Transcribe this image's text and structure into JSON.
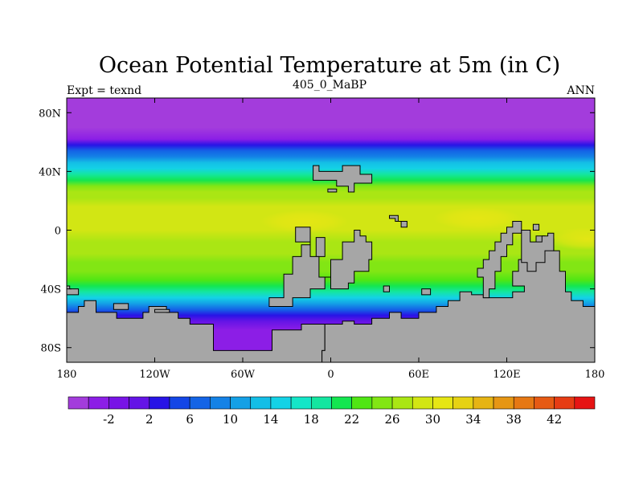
{
  "chart_data": {
    "type": "heatmap",
    "title": "Ocean Potential Temperature at 5m (in C)",
    "left_label": "Expt = texnd",
    "center_label": "405_0_MaBP",
    "right_label": "ANN",
    "x_ticks": [
      "180",
      "120W",
      "60W",
      "0",
      "60E",
      "120E",
      "180"
    ],
    "x_tick_values": [
      -180,
      -120,
      -60,
      0,
      60,
      120,
      180
    ],
    "y_ticks": [
      "80N",
      "40N",
      "0",
      "40S",
      "80S"
    ],
    "y_tick_values": [
      80,
      40,
      0,
      -40,
      -80
    ],
    "xlim": [
      -180,
      180
    ],
    "ylim": [
      -90,
      90
    ],
    "land_color": "#a6a6a6",
    "colorbar": {
      "colors": [
        "#a33cdc",
        "#8c1ee6",
        "#7814e6",
        "#6414e6",
        "#2814e6",
        "#1446e6",
        "#1464e6",
        "#1482e6",
        "#14a0e6",
        "#14bee6",
        "#14d2e6",
        "#14e6c8",
        "#14e6a0",
        "#14e650",
        "#50e614",
        "#82e614",
        "#aae614",
        "#d2e614",
        "#e6e614",
        "#e6d214",
        "#e6b414",
        "#e69614",
        "#e67814",
        "#e65a14",
        "#e63c14",
        "#e61414"
      ],
      "labels": [
        "-2",
        "2",
        "6",
        "10",
        "14",
        "18",
        "22",
        "26",
        "30",
        "34",
        "38",
        "42"
      ]
    },
    "field_bands": [
      {
        "lat": 90,
        "value": -3
      },
      {
        "lat": 70,
        "value": -3
      },
      {
        "lat": 62,
        "value": -1
      },
      {
        "lat": 58,
        "value": 4
      },
      {
        "lat": 54,
        "value": 8
      },
      {
        "lat": 50,
        "value": 11
      },
      {
        "lat": 46,
        "value": 14
      },
      {
        "lat": 42,
        "value": 17
      },
      {
        "lat": 38,
        "value": 20
      },
      {
        "lat": 34,
        "value": 23
      },
      {
        "lat": 30,
        "value": 26
      },
      {
        "lat": 26,
        "value": 28
      },
      {
        "lat": 22,
        "value": 29.5
      },
      {
        "lat": 16,
        "value": 30.5
      },
      {
        "lat": 6,
        "value": 30.5
      },
      {
        "lat": 0,
        "value": 30.5
      },
      {
        "lat": -8,
        "value": 29.5
      },
      {
        "lat": -16,
        "value": 28.5
      },
      {
        "lat": -22,
        "value": 27.5
      },
      {
        "lat": -28,
        "value": 26.5
      },
      {
        "lat": -34,
        "value": 25
      },
      {
        "lat": -38,
        "value": 23
      },
      {
        "lat": -42,
        "value": 20
      },
      {
        "lat": -46,
        "value": 16
      },
      {
        "lat": -50,
        "value": 12
      },
      {
        "lat": -54,
        "value": 8
      },
      {
        "lat": -58,
        "value": 5
      },
      {
        "lat": -62,
        "value": 2
      },
      {
        "lat": -68,
        "value": -1
      },
      {
        "lat": -90,
        "value": -2
      }
    ],
    "warm_patches": [
      {
        "lon": -18,
        "lat": 6,
        "value": 33
      },
      {
        "lon": 100,
        "lat": 8,
        "value": 33
      },
      {
        "lon": 175,
        "lat": -6,
        "value": 32
      }
    ],
    "land_polygons": [
      [
        [
          -10,
          -5
        ],
        [
          -4,
          -5
        ],
        [
          -4,
          -18
        ],
        [
          -10,
          -18
        ]
      ],
      [
        [
          -24,
          2
        ],
        [
          -14,
          2
        ],
        [
          -14,
          -10
        ],
        [
          -20,
          -10
        ],
        [
          -20,
          -18
        ],
        [
          -26,
          -18
        ],
        [
          -26,
          -30
        ],
        [
          -32,
          -30
        ],
        [
          -32,
          -46
        ],
        [
          -42,
          -46
        ],
        [
          -42,
          -52
        ],
        [
          -26,
          -52
        ],
        [
          -26,
          -46
        ],
        [
          -14,
          -46
        ],
        [
          -14,
          -40
        ],
        [
          -4,
          -40
        ],
        [
          -4,
          -32
        ],
        [
          0,
          -32
        ],
        [
          0,
          -20
        ],
        [
          8,
          -20
        ],
        [
          8,
          -8
        ],
        [
          16,
          -8
        ],
        [
          16,
          0
        ],
        [
          20,
          0
        ],
        [
          20,
          -4
        ],
        [
          24,
          -4
        ],
        [
          24,
          -8
        ],
        [
          28,
          -8
        ],
        [
          28,
          -20
        ],
        [
          26,
          -20
        ],
        [
          26,
          -28
        ],
        [
          16,
          -28
        ],
        [
          16,
          -36
        ],
        [
          12,
          -36
        ],
        [
          12,
          -40
        ],
        [
          0,
          -40
        ],
        [
          0,
          -32
        ],
        [
          -8,
          -32
        ],
        [
          -8,
          -18
        ],
        [
          -14,
          -18
        ],
        [
          -14,
          -8
        ],
        [
          -24,
          -8
        ]
      ],
      [
        [
          -12,
          44
        ],
        [
          -8,
          44
        ],
        [
          -8,
          40
        ],
        [
          8,
          40
        ],
        [
          8,
          44
        ],
        [
          20,
          44
        ],
        [
          20,
          38
        ],
        [
          28,
          38
        ],
        [
          28,
          32
        ],
        [
          16,
          32
        ],
        [
          16,
          26
        ],
        [
          12,
          26
        ],
        [
          12,
          30
        ],
        [
          4,
          30
        ],
        [
          4,
          34
        ],
        [
          -12,
          34
        ],
        [
          -12,
          40
        ]
      ],
      [
        [
          -2,
          28
        ],
        [
          4,
          28
        ],
        [
          4,
          26
        ],
        [
          -2,
          26
        ]
      ],
      [
        [
          40,
          10
        ],
        [
          46,
          10
        ],
        [
          46,
          6
        ],
        [
          52,
          6
        ],
        [
          52,
          2
        ],
        [
          48,
          2
        ],
        [
          48,
          6
        ],
        [
          44,
          6
        ],
        [
          44,
          8
        ],
        [
          40,
          8
        ]
      ],
      [
        [
          36,
          -38
        ],
        [
          40,
          -38
        ],
        [
          40,
          -42
        ],
        [
          36,
          -42
        ]
      ],
      [
        [
          62,
          -40
        ],
        [
          68,
          -40
        ],
        [
          68,
          -44
        ],
        [
          62,
          -44
        ]
      ],
      [
        [
          -180,
          -56
        ],
        [
          -172,
          -56
        ],
        [
          -172,
          -52
        ],
        [
          -168,
          -52
        ],
        [
          -168,
          -48
        ],
        [
          -160,
          -48
        ],
        [
          -160,
          -56
        ],
        [
          -146,
          -56
        ],
        [
          -146,
          -60
        ],
        [
          -128,
          -60
        ],
        [
          -128,
          -56
        ],
        [
          -124,
          -56
        ],
        [
          -124,
          -52
        ],
        [
          -112,
          -52
        ],
        [
          -112,
          -56
        ],
        [
          -104,
          -56
        ],
        [
          -104,
          -60
        ],
        [
          -96,
          -60
        ],
        [
          -96,
          -64
        ],
        [
          -80,
          -64
        ],
        [
          -80,
          -82
        ],
        [
          -40,
          -82
        ],
        [
          -40,
          -68
        ],
        [
          -20,
          -68
        ],
        [
          -20,
          -64
        ],
        [
          -4,
          -64
        ],
        [
          -4,
          -82
        ],
        [
          -6,
          -82
        ],
        [
          -6,
          -90
        ],
        [
          -180,
          -90
        ]
      ],
      [
        [
          -180,
          -38
        ],
        [
          -178,
          -38
        ],
        [
          -178,
          -40
        ],
        [
          -172,
          -40
        ],
        [
          -172,
          -44
        ],
        [
          -180,
          -44
        ]
      ],
      [
        [
          -148,
          -50
        ],
        [
          -138,
          -50
        ],
        [
          -138,
          -54
        ],
        [
          -148,
          -54
        ]
      ],
      [
        [
          -120,
          -54
        ],
        [
          -110,
          -54
        ],
        [
          -110,
          -56
        ],
        [
          -120,
          -56
        ]
      ],
      [
        [
          -4,
          -64
        ],
        [
          -4,
          -82
        ],
        [
          -6,
          -82
        ],
        [
          -6,
          -90
        ],
        [
          180,
          -90
        ],
        [
          180,
          -52
        ],
        [
          172,
          -52
        ],
        [
          172,
          -48
        ],
        [
          164,
          -48
        ],
        [
          164,
          -42
        ],
        [
          160,
          -42
        ],
        [
          160,
          -28
        ],
        [
          156,
          -28
        ],
        [
          156,
          -14
        ],
        [
          152,
          -14
        ],
        [
          152,
          -6
        ],
        [
          146,
          -6
        ],
        [
          146,
          -4
        ],
        [
          140,
          -4
        ],
        [
          140,
          -10
        ],
        [
          132,
          -10
        ],
        [
          132,
          -20
        ],
        [
          128,
          -20
        ],
        [
          128,
          -28
        ],
        [
          124,
          -28
        ],
        [
          124,
          -38
        ],
        [
          132,
          -38
        ],
        [
          132,
          -42
        ],
        [
          124,
          -42
        ],
        [
          124,
          -46
        ],
        [
          104,
          -46
        ],
        [
          104,
          -44
        ],
        [
          96,
          -44
        ],
        [
          96,
          -42
        ],
        [
          88,
          -42
        ],
        [
          88,
          -48
        ],
        [
          80,
          -48
        ],
        [
          80,
          -52
        ],
        [
          72,
          -52
        ],
        [
          72,
          -56
        ],
        [
          60,
          -56
        ],
        [
          60,
          -60
        ],
        [
          48,
          -60
        ],
        [
          48,
          -56
        ],
        [
          40,
          -56
        ],
        [
          40,
          -60
        ],
        [
          28,
          -60
        ],
        [
          28,
          -64
        ],
        [
          16,
          -64
        ],
        [
          16,
          -62
        ],
        [
          8,
          -62
        ],
        [
          8,
          -64
        ]
      ],
      [
        [
          104,
          -46
        ],
        [
          104,
          -32
        ],
        [
          100,
          -32
        ],
        [
          100,
          -26
        ],
        [
          104,
          -26
        ],
        [
          104,
          -20
        ],
        [
          108,
          -20
        ],
        [
          108,
          -14
        ],
        [
          112,
          -14
        ],
        [
          112,
          -8
        ],
        [
          116,
          -8
        ],
        [
          116,
          -2
        ],
        [
          120,
          -2
        ],
        [
          120,
          2
        ],
        [
          124,
          2
        ],
        [
          124,
          6
        ],
        [
          130,
          6
        ],
        [
          130,
          -2
        ],
        [
          124,
          -2
        ],
        [
          124,
          -10
        ],
        [
          120,
          -10
        ],
        [
          120,
          -18
        ],
        [
          116,
          -18
        ],
        [
          116,
          -28
        ],
        [
          112,
          -28
        ],
        [
          112,
          -40
        ],
        [
          108,
          -40
        ],
        [
          108,
          -46
        ]
      ],
      [
        [
          130,
          0
        ],
        [
          136,
          0
        ],
        [
          136,
          -8
        ],
        [
          144,
          -8
        ],
        [
          144,
          -4
        ],
        [
          148,
          -4
        ],
        [
          148,
          -2
        ],
        [
          152,
          -2
        ],
        [
          152,
          -14
        ],
        [
          146,
          -14
        ],
        [
          146,
          -22
        ],
        [
          140,
          -22
        ],
        [
          140,
          -28
        ],
        [
          134,
          -28
        ],
        [
          134,
          -22
        ],
        [
          130,
          -22
        ],
        [
          130,
          -10
        ],
        [
          130,
          -2
        ]
      ],
      [
        [
          138,
          4
        ],
        [
          142,
          4
        ],
        [
          142,
          0
        ],
        [
          138,
          0
        ]
      ]
    ]
  }
}
